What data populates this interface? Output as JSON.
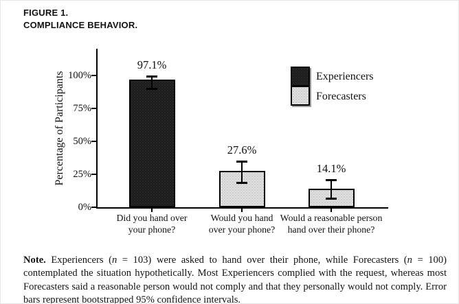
{
  "header": {
    "figure_label": "FIGURE 1.",
    "figure_title": "COMPLIANCE BEHAVIOR."
  },
  "chart_data": {
    "type": "bar",
    "title": "",
    "xlabel": "",
    "ylabel": "Percentage of Participants",
    "ylim": [
      0,
      100
    ],
    "grid": false,
    "legend_position": "upper right",
    "y_ticks": [
      {
        "label": "0%",
        "value": 0
      },
      {
        "label": "25%",
        "value": 25
      },
      {
        "label": "50%",
        "value": 50
      },
      {
        "label": "75%",
        "value": 75
      },
      {
        "label": "100%",
        "value": 100
      }
    ],
    "categories": [
      "Did you hand over your phone?",
      "Would you hand over your phone?",
      "Would a reasonable person hand over their phone?"
    ],
    "bars": [
      {
        "category_lines": [
          "Did you hand over",
          "your phone?"
        ],
        "series": "Experiencers",
        "value": 97.1,
        "label": "97.1%",
        "ci": [
          90,
          99.4
        ]
      },
      {
        "category_lines": [
          "Would you hand",
          "over your phone?"
        ],
        "series": "Forecasters",
        "value": 27.6,
        "label": "27.6%",
        "ci": [
          19,
          35
        ]
      },
      {
        "category_lines": [
          "Would a reasonable person",
          "hand over their phone?"
        ],
        "series": "Forecasters",
        "value": 14.1,
        "label": "14.1%",
        "ci": [
          7,
          21
        ]
      }
    ],
    "legend": [
      {
        "label": "Experiencers",
        "color": "#1b1b1b",
        "texture": "dark-stipple"
      },
      {
        "label": "Forecasters",
        "color": "#e0e0e0",
        "texture": "light-stipple"
      }
    ],
    "error_bar_meaning": "bootstrapped 95% confidence intervals"
  },
  "note": {
    "segments": [
      {
        "text": "Note.",
        "bold": true
      },
      {
        "text": " Experiencers ("
      },
      {
        "text": "n",
        "italic": true
      },
      {
        "text": " = 103) were asked to hand over their phone, while Forecasters ("
      },
      {
        "text": "n",
        "italic": true
      },
      {
        "text": " = 100) contemplated the situation hypothetically. Most Experiencers complied with the request, whereas most Forecasters said a reasonable person would not comply and that they personally would not comply. Error bars represent bootstrapped 95% confidence intervals."
      }
    ]
  }
}
